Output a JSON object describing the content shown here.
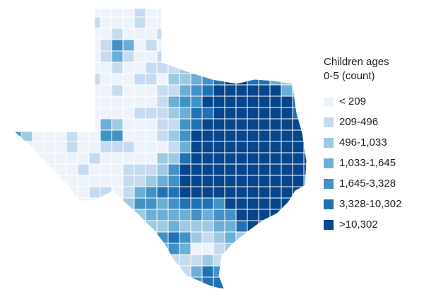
{
  "legend": {
    "title_line1": "Children ages",
    "title_line2": "0-5 (count)",
    "items": [
      {
        "label": "< 209",
        "color": "#eef3fb"
      },
      {
        "label": "209-496",
        "color": "#c6dbef"
      },
      {
        "label": "496-1,033",
        "color": "#9ecae1"
      },
      {
        "label": "1,033-1,645",
        "color": "#6baed6"
      },
      {
        "label": "1,645-3,328",
        "color": "#4292c6"
      },
      {
        "label": "3,328-10,302",
        "color": "#2171b5"
      },
      {
        "label": ">10,302",
        "color": "#08468c"
      }
    ]
  }
}
